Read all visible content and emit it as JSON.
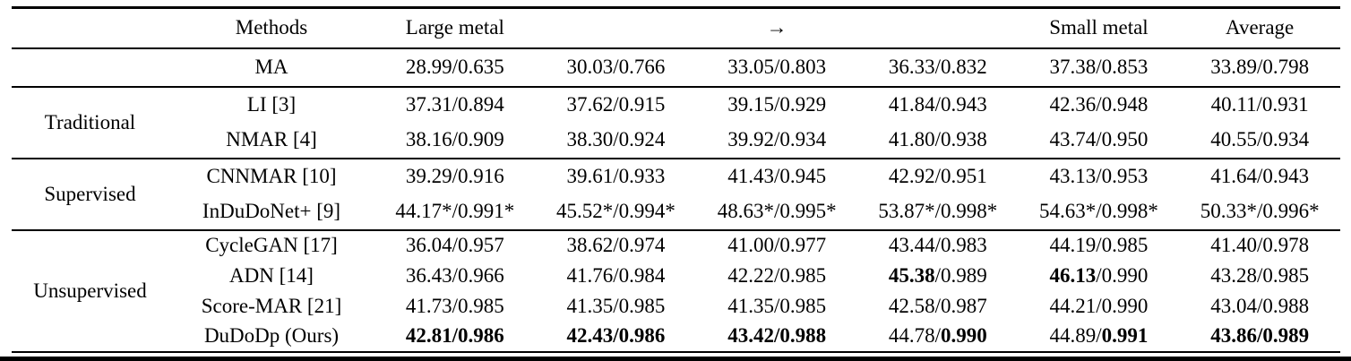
{
  "table": {
    "header": {
      "group": "",
      "methods": "Methods",
      "data_cols": [
        "Large metal",
        "",
        "→",
        "",
        "Small metal",
        "Average"
      ]
    },
    "groups": [
      {
        "label": "",
        "rows": [
          {
            "method": "MA",
            "cells": [
              [
                {
                  "t": "28.99/0.635",
                  "b": false
                }
              ],
              [
                {
                  "t": "30.03/0.766",
                  "b": false
                }
              ],
              [
                {
                  "t": "33.05/0.803",
                  "b": false
                }
              ],
              [
                {
                  "t": "36.33/0.832",
                  "b": false
                }
              ],
              [
                {
                  "t": "37.38/0.853",
                  "b": false
                }
              ],
              [
                {
                  "t": "33.89/0.798",
                  "b": false
                }
              ]
            ]
          }
        ]
      },
      {
        "label": "Traditional",
        "rows": [
          {
            "method": "LI [3]",
            "cells": [
              [
                {
                  "t": "37.31/0.894",
                  "b": false
                }
              ],
              [
                {
                  "t": "37.62/0.915",
                  "b": false
                }
              ],
              [
                {
                  "t": "39.15/0.929",
                  "b": false
                }
              ],
              [
                {
                  "t": "41.84/0.943",
                  "b": false
                }
              ],
              [
                {
                  "t": "42.36/0.948",
                  "b": false
                }
              ],
              [
                {
                  "t": "40.11/0.931",
                  "b": false
                }
              ]
            ]
          },
          {
            "method": "NMAR [4]",
            "cells": [
              [
                {
                  "t": "38.16/0.909",
                  "b": false
                }
              ],
              [
                {
                  "t": "38.30/0.924",
                  "b": false
                }
              ],
              [
                {
                  "t": "39.92/0.934",
                  "b": false
                }
              ],
              [
                {
                  "t": "41.80/0.938",
                  "b": false
                }
              ],
              [
                {
                  "t": "43.74/0.950",
                  "b": false
                }
              ],
              [
                {
                  "t": "40.55/0.934",
                  "b": false
                }
              ]
            ]
          }
        ]
      },
      {
        "label": "Supervised",
        "rows": [
          {
            "method": "CNNMAR [10]",
            "cells": [
              [
                {
                  "t": "39.29/0.916",
                  "b": false
                }
              ],
              [
                {
                  "t": "39.61/0.933",
                  "b": false
                }
              ],
              [
                {
                  "t": "41.43/0.945",
                  "b": false
                }
              ],
              [
                {
                  "t": "42.92/0.951",
                  "b": false
                }
              ],
              [
                {
                  "t": "43.13/0.953",
                  "b": false
                }
              ],
              [
                {
                  "t": "41.64/0.943",
                  "b": false
                }
              ]
            ]
          },
          {
            "method": "InDuDoNet+ [9]",
            "cells": [
              [
                {
                  "t": "44.17*/0.991*",
                  "b": false
                }
              ],
              [
                {
                  "t": "45.52*/0.994*",
                  "b": false
                }
              ],
              [
                {
                  "t": "48.63*/0.995*",
                  "b": false
                }
              ],
              [
                {
                  "t": "53.87*/0.998*",
                  "b": false
                }
              ],
              [
                {
                  "t": "54.63*/0.998*",
                  "b": false
                }
              ],
              [
                {
                  "t": "50.33*/0.996*",
                  "b": false
                }
              ]
            ]
          }
        ]
      },
      {
        "label": "Unsupervised",
        "rows": [
          {
            "method": "CycleGAN [17]",
            "cells": [
              [
                {
                  "t": "36.04/0.957",
                  "b": false
                }
              ],
              [
                {
                  "t": "38.62/0.974",
                  "b": false
                }
              ],
              [
                {
                  "t": "41.00/0.977",
                  "b": false
                }
              ],
              [
                {
                  "t": "43.44/0.983",
                  "b": false
                }
              ],
              [
                {
                  "t": "44.19/0.985",
                  "b": false
                }
              ],
              [
                {
                  "t": "41.40/0.978",
                  "b": false
                }
              ]
            ]
          },
          {
            "method": "ADN [14]",
            "cells": [
              [
                {
                  "t": "36.43/0.966",
                  "b": false
                }
              ],
              [
                {
                  "t": "41.76/0.984",
                  "b": false
                }
              ],
              [
                {
                  "t": "42.22/0.985",
                  "b": false
                }
              ],
              [
                {
                  "t": "45.38",
                  "b": true
                },
                {
                  "t": "/0.989",
                  "b": false
                }
              ],
              [
                {
                  "t": "46.13",
                  "b": true
                },
                {
                  "t": "/0.990",
                  "b": false
                }
              ],
              [
                {
                  "t": "43.28/0.985",
                  "b": false
                }
              ]
            ]
          },
          {
            "method": "Score-MAR [21]",
            "cells": [
              [
                {
                  "t": "41.73/0.985",
                  "b": false
                }
              ],
              [
                {
                  "t": "41.35/0.985",
                  "b": false
                }
              ],
              [
                {
                  "t": "41.35/0.985",
                  "b": false
                }
              ],
              [
                {
                  "t": "42.58/0.987",
                  "b": false
                }
              ],
              [
                {
                  "t": "44.21/0.990",
                  "b": false
                }
              ],
              [
                {
                  "t": "43.04/0.988",
                  "b": false
                }
              ]
            ]
          },
          {
            "method": "DuDoDp (Ours)",
            "cells": [
              [
                {
                  "t": "42.81/0.986",
                  "b": true
                }
              ],
              [
                {
                  "t": "42.43/0.986",
                  "b": true
                }
              ],
              [
                {
                  "t": "43.42/0.988",
                  "b": true
                }
              ],
              [
                {
                  "t": "44.78/",
                  "b": false
                },
                {
                  "t": "0.990",
                  "b": true
                }
              ],
              [
                {
                  "t": "44.89/",
                  "b": false
                },
                {
                  "t": "0.991",
                  "b": true
                }
              ],
              [
                {
                  "t": "43.86/0.989",
                  "b": true
                }
              ]
            ]
          }
        ]
      }
    ]
  }
}
